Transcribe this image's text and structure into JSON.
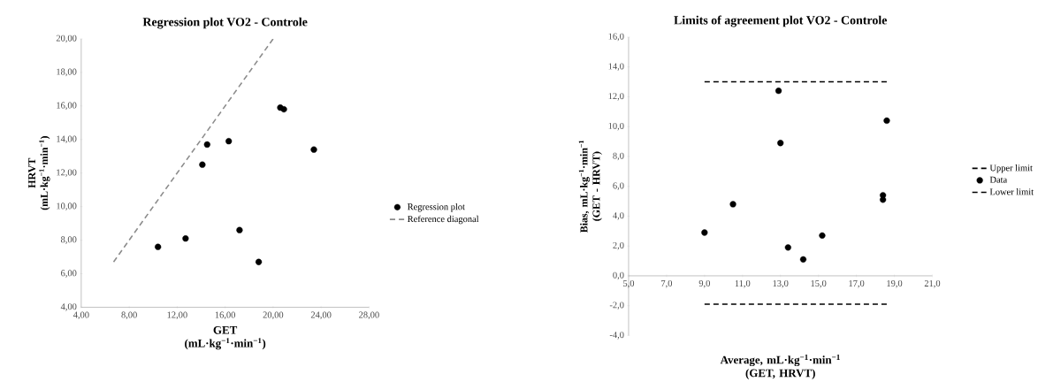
{
  "chart_data": [
    {
      "type": "scatter",
      "title": "Regression plot VO2 - Controle",
      "xlabel": "GET (mL·kg$^{−1}$·min$^{−1}$)",
      "ylabel": "HRVT (mL·kg$^{−1}$·min$^{−1}$)",
      "xlim": [
        4,
        28
      ],
      "ylim": [
        4,
        20
      ],
      "xticks": [
        {
          "value": 4,
          "label": "4,00"
        },
        {
          "value": 8,
          "label": "8,00"
        },
        {
          "value": 12,
          "label": "12,00"
        },
        {
          "value": 16,
          "label": "16,00"
        },
        {
          "value": 20,
          "label": "20,00"
        },
        {
          "value": 24,
          "label": "24,00"
        },
        {
          "value": 28,
          "label": "28,00"
        }
      ],
      "yticks": [
        {
          "value": 4,
          "label": "4,00"
        },
        {
          "value": 6,
          "label": "6,00"
        },
        {
          "value": 8,
          "label": "8,00"
        },
        {
          "value": 10,
          "label": "10,00"
        },
        {
          "value": 12,
          "label": "12,00"
        },
        {
          "value": 14,
          "label": "14,00"
        },
        {
          "value": 16,
          "label": "16,00"
        },
        {
          "value": 18,
          "label": "18,00"
        },
        {
          "value": 20,
          "label": "20,00"
        }
      ],
      "grid": false,
      "legend": "right",
      "series": [
        {
          "name": "Regression plot",
          "marker": "circle",
          "color": "#000000",
          "x": [
            10.4,
            12.7,
            14.1,
            14.5,
            16.3,
            17.2,
            18.8,
            20.6,
            20.9,
            23.4
          ],
          "values": [
            7.6,
            8.1,
            12.5,
            13.7,
            13.9,
            8.6,
            6.7,
            15.9,
            15.8,
            13.4
          ]
        },
        {
          "name": "Reference diagonal",
          "type": "line",
          "marker": "none",
          "line_style": "dashed",
          "color": "#8c8c8c",
          "x": [
            6.7,
            20
          ],
          "values": [
            6.7,
            20
          ]
        }
      ]
    },
    {
      "type": "scatter",
      "title": "Limits of agreement plot VO2 - Controle",
      "xlabel": "Average, mL·kg$^{−1}$·min$^{−1}$ (GET, HRVT)",
      "ylabel": "Bias, mL·kg$^{−1}$·min$^{−1}$ (GET - HRVT)",
      "xlim": [
        5,
        21
      ],
      "ylim": [
        -4,
        16
      ],
      "xticks": [
        {
          "value": 5,
          "label": "5,0"
        },
        {
          "value": 7,
          "label": "7,0"
        },
        {
          "value": 9,
          "label": "9,0"
        },
        {
          "value": 11,
          "label": "11,0"
        },
        {
          "value": 13,
          "label": "13,0"
        },
        {
          "value": 15,
          "label": "15,0"
        },
        {
          "value": 17,
          "label": "17,0"
        },
        {
          "value": 19,
          "label": "19,0"
        },
        {
          "value": 21,
          "label": "21,0"
        }
      ],
      "yticks": [
        {
          "value": -4,
          "label": "-4,0"
        },
        {
          "value": -2,
          "label": "-2,0"
        },
        {
          "value": 0,
          "label": "0,0"
        },
        {
          "value": 2,
          "label": "2,0"
        },
        {
          "value": 4,
          "label": "4,0"
        },
        {
          "value": 6,
          "label": "6,0"
        },
        {
          "value": 8,
          "label": "8,0"
        },
        {
          "value": 10,
          "label": "10,0"
        },
        {
          "value": 12,
          "label": "12,0"
        },
        {
          "value": 14,
          "label": "14,0"
        },
        {
          "value": 16,
          "label": "16,0"
        }
      ],
      "grid": false,
      "legend": "right",
      "series": [
        {
          "name": "Upper limit",
          "type": "line",
          "marker": "none",
          "line_style": "dashed",
          "color": "#000000",
          "x": [
            9.0,
            18.6
          ],
          "values": [
            13.0,
            13.0
          ]
        },
        {
          "name": "Data",
          "marker": "circle",
          "color": "#000000",
          "x": [
            9.0,
            10.5,
            12.9,
            13.0,
            13.4,
            14.2,
            15.2,
            18.4,
            18.4,
            18.6
          ],
          "values": [
            2.9,
            4.8,
            12.4,
            8.9,
            1.9,
            1.1,
            2.7,
            5.1,
            5.4,
            10.4
          ]
        },
        {
          "name": "Lower limit",
          "type": "line",
          "marker": "none",
          "line_style": "dashed",
          "color": "#000000",
          "x": [
            9.0,
            18.6
          ],
          "values": [
            -1.9,
            -1.9
          ]
        }
      ]
    }
  ]
}
